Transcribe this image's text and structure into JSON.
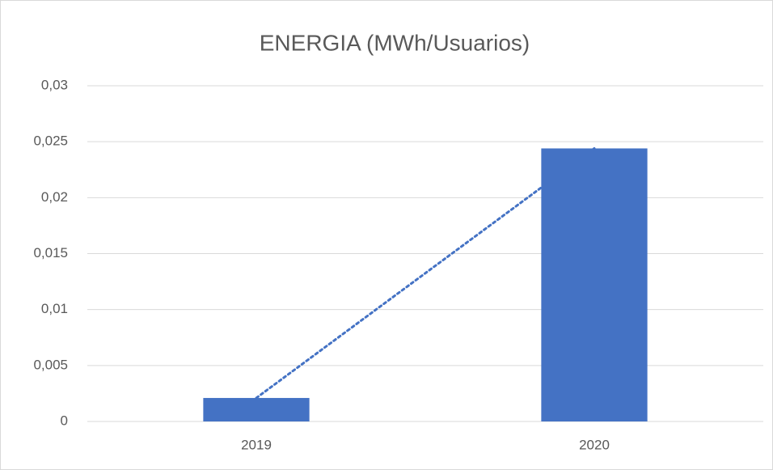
{
  "chart_data": {
    "type": "bar",
    "title": "ENERGIA (MWh/Usuarios)",
    "categories": [
      "2019",
      "2020"
    ],
    "values": [
      0.0021,
      0.0244
    ],
    "color": "#4472c4",
    "ylim": [
      0,
      0.03
    ],
    "yticks": [
      0,
      {
        "value": 0.005,
        "label": "0,005"
      },
      {
        "value": 0.01,
        "label": "0,01"
      },
      {
        "value": 0.015,
        "label": "0,015"
      },
      {
        "value": 0.02,
        "label": "0,02"
      },
      {
        "value": 0.025,
        "label": "0,025"
      },
      {
        "value": 0.03,
        "label": "0,03"
      }
    ],
    "grid": true,
    "trendline": "linear"
  }
}
